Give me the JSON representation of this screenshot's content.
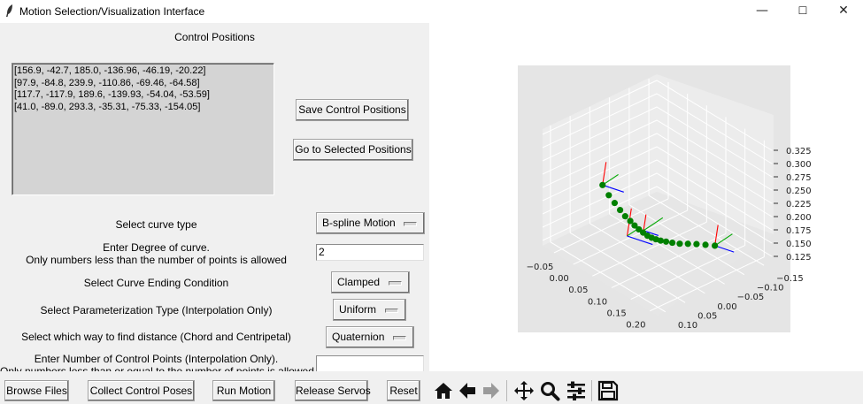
{
  "window": {
    "title": "Motion Selection/Visualization Interface",
    "minimize_glyph": "—",
    "maximize_glyph": "☐",
    "close_glyph": "✕"
  },
  "control_positions": {
    "heading": "Control Positions",
    "items": [
      "[156.9, -42.7, 185.0, -136.96, -46.19, -20.22]",
      "[97.9, -84.8, 239.9, -110.86, -69.46, -64.58]",
      "[117.7, -117.9, 189.6, -139.93, -54.04, -53.59]",
      "[41.0, -89.0, 293.3, -35.31, -75.33, -154.05]"
    ],
    "save_label": "Save Control Positions",
    "goto_label": "Go to Selected Positions"
  },
  "form": {
    "curve_type": {
      "label": "Select curve type",
      "value": "B-spline Motion"
    },
    "degree": {
      "label_line1": "Enter Degree of curve.",
      "label_line2": "Only numbers less than the number of points is allowed",
      "value": "2"
    },
    "ending_condition": {
      "label": "Select Curve Ending Condition",
      "value": "Clamped"
    },
    "parameterization": {
      "label": "Select Parameterization Type (Interpolation Only)",
      "value": "Uniform"
    },
    "distance": {
      "label": "Select which way to find distance (Chord and Centripetal)",
      "value": "Quaternion"
    },
    "num_control_points": {
      "label_line1": "Enter Number of Control Points (Interpolation Only).",
      "label_line2": "Only numbers less than or equal to the number of points is allowed",
      "value": ""
    }
  },
  "bottom_bar": {
    "browse_label": "Browse Files",
    "collect_label": "Collect Control Poses",
    "run_label": "Run Motion",
    "release_label": "Release Servos",
    "reset_label": "Reset",
    "toolbar_icons": [
      "home-icon",
      "back-arrow-icon",
      "forward-arrow-icon",
      "pan-icon",
      "zoom-icon",
      "configure-subplots-icon",
      "save-icon"
    ]
  },
  "chart_data": {
    "type": "scatter",
    "projection": "3d",
    "title": "",
    "xlabel": "",
    "ylabel": "",
    "zlabel": "",
    "x_ticks": [
      "−0.05",
      "0.00",
      "0.05",
      "0.10",
      "0.15",
      "0.20"
    ],
    "y_ticks": [
      "−0.15",
      "−0.10",
      "−0.05",
      "0.00",
      "0.05",
      "0.10"
    ],
    "z_ticks": [
      "0.125",
      "0.150",
      "0.175",
      "0.200",
      "0.225",
      "0.250",
      "0.275",
      "0.300",
      "0.325"
    ],
    "xlim": [
      -0.08,
      0.22
    ],
    "ylim": [
      -0.17,
      0.12
    ],
    "zlim": [
      0.115,
      0.335
    ],
    "grid": true,
    "point_color": "#008000",
    "frame_axis_colors": {
      "x": "#ff0000",
      "y": "#00aa00",
      "z": "#0000ff"
    },
    "path_points": [
      {
        "x": 0.025,
        "y": 0.07,
        "z": 0.258
      },
      {
        "x": 0.031,
        "y": 0.06,
        "z": 0.238
      },
      {
        "x": 0.036,
        "y": 0.05,
        "z": 0.222
      },
      {
        "x": 0.04,
        "y": 0.04,
        "z": 0.207
      },
      {
        "x": 0.043,
        "y": 0.03,
        "z": 0.193
      },
      {
        "x": 0.046,
        "y": 0.02,
        "z": 0.182
      },
      {
        "x": 0.049,
        "y": 0.012,
        "z": 0.172
      },
      {
        "x": 0.053,
        "y": 0.005,
        "z": 0.164
      },
      {
        "x": 0.058,
        "y": -0.001,
        "z": 0.158
      },
      {
        "x": 0.064,
        "y": -0.006,
        "z": 0.153
      },
      {
        "x": 0.07,
        "y": -0.011,
        "z": 0.15
      },
      {
        "x": 0.076,
        "y": -0.016,
        "z": 0.148
      },
      {
        "x": 0.082,
        "y": -0.022,
        "z": 0.146
      },
      {
        "x": 0.088,
        "y": -0.03,
        "z": 0.144
      },
      {
        "x": 0.094,
        "y": -0.04,
        "z": 0.141
      },
      {
        "x": 0.101,
        "y": -0.052,
        "z": 0.138
      },
      {
        "x": 0.108,
        "y": -0.066,
        "z": 0.136
      },
      {
        "x": 0.116,
        "y": -0.08,
        "z": 0.134
      },
      {
        "x": 0.124,
        "y": -0.095,
        "z": 0.131
      },
      {
        "x": 0.133,
        "y": -0.11,
        "z": 0.128
      }
    ],
    "control_frames": [
      {
        "x": 0.025,
        "y": 0.07,
        "z": 0.258
      },
      {
        "x": 0.06,
        "y": 0.0,
        "z": 0.163
      },
      {
        "x": 0.048,
        "y": 0.03,
        "z": 0.158
      },
      {
        "x": 0.133,
        "y": -0.11,
        "z": 0.128
      }
    ]
  }
}
